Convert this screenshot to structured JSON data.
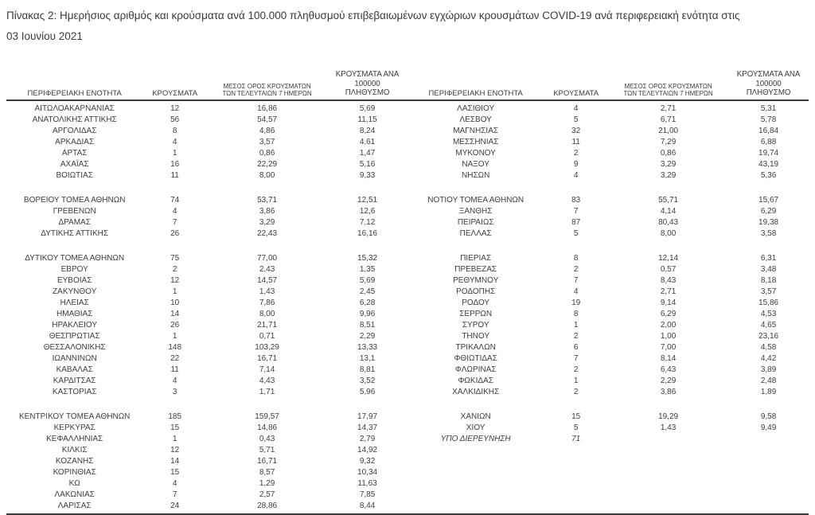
{
  "title": "Πίνακας 2:  Ημερήσιος αριθμός και κρούσματα ανά 100.000 πληθυσμού επιβεβαιωμένων εγχώριων κρουσμάτων COVID-19 ανά περιφερειακή ενότητα στις 03 Ιουνίου 2021",
  "table": {
    "headers": {
      "region": "ΠΕΡΙΦΕΡΕΙΑΚΗ ΕΝΟΤΗΤΑ",
      "cases": "ΚΡΟΥΣΜΑΤΑ",
      "avg7_line1": "ΜΕΣΟΣ ΟΡΟΣ ΚΡΟΥΣΜΑΤΩΝ",
      "avg7_line2": "ΤΩΝ ΤΕΛΕΥΤΑΙΩΝ 7 ΗΜΕΡΩΝ",
      "per100k_line1": "ΚΡΟΥΣΜΑΤΑ ΑΝΑ 100000",
      "per100k_line2": "ΠΛΗΘΥΣΜΟ"
    },
    "left_groups": [
      [
        {
          "r": "ΑΙΤΩΛΟΑΚΑΡΝΑΝΙΑΣ",
          "c": "12",
          "a": "16,86",
          "p": "5,69"
        },
        {
          "r": "ΑΝΑΤΟΛΙΚΗΣ ΑΤΤΙΚΗΣ",
          "c": "56",
          "a": "54,57",
          "p": "11,15"
        },
        {
          "r": "ΑΡΓΟΛΙΔΑΣ",
          "c": "8",
          "a": "4,86",
          "p": "8,24"
        },
        {
          "r": "ΑΡΚΑΔΙΑΣ",
          "c": "4",
          "a": "3,57",
          "p": "4,61"
        },
        {
          "r": "ΑΡΤΑΣ",
          "c": "1",
          "a": "0,86",
          "p": "1,47"
        },
        {
          "r": "ΑΧΑΪΑΣ",
          "c": "16",
          "a": "22,29",
          "p": "5,16"
        },
        {
          "r": "ΒΟΙΩΤΙΑΣ",
          "c": "11",
          "a": "8,00",
          "p": "9,33"
        }
      ],
      [
        {
          "r": "ΒΟΡΕΙΟΥ ΤΟΜΕΑ ΑΘΗΝΩΝ",
          "c": "74",
          "a": "53,71",
          "p": "12,51"
        },
        {
          "r": "ΓΡΕΒΕΝΩΝ",
          "c": "4",
          "a": "3,86",
          "p": "12,6"
        },
        {
          "r": "ΔΡΑΜΑΣ",
          "c": "7",
          "a": "3,29",
          "p": "7,12"
        },
        {
          "r": "ΔΥΤΙΚΗΣ ΑΤΤΙΚΗΣ",
          "c": "26",
          "a": "22,43",
          "p": "16,16"
        }
      ],
      [
        {
          "r": "ΔΥΤΙΚΟΥ ΤΟΜΕΑ ΑΘΗΝΩΝ",
          "c": "75",
          "a": "77,00",
          "p": "15,32"
        },
        {
          "r": "ΕΒΡΟΥ",
          "c": "2",
          "a": "2,43",
          "p": "1,35"
        },
        {
          "r": "ΕΥΒΟΙΑΣ",
          "c": "12",
          "a": "14,57",
          "p": "5,69"
        },
        {
          "r": "ΖΑΚΥΝΘΟΥ",
          "c": "1",
          "a": "1,43",
          "p": "2,45"
        },
        {
          "r": "ΗΛΕΙΑΣ",
          "c": "10",
          "a": "7,86",
          "p": "6,28"
        },
        {
          "r": "ΗΜΑΘΙΑΣ",
          "c": "14",
          "a": "8,00",
          "p": "9,96"
        },
        {
          "r": "ΗΡΑΚΛΕΙΟΥ",
          "c": "26",
          "a": "21,71",
          "p": "8,51"
        },
        {
          "r": "ΘΕΣΠΡΩΤΙΑΣ",
          "c": "1",
          "a": "0,71",
          "p": "2,29"
        },
        {
          "r": "ΘΕΣΣΑΛΟΝΙΚΗΣ",
          "c": "148",
          "a": "103,29",
          "p": "13,33"
        },
        {
          "r": "ΙΩΑΝΝΙΝΩΝ",
          "c": "22",
          "a": "16,71",
          "p": "13,1"
        },
        {
          "r": "ΚΑΒΑΛΑΣ",
          "c": "11",
          "a": "7,14",
          "p": "8,81"
        },
        {
          "r": "ΚΑΡΔΙΤΣΑΣ",
          "c": "4",
          "a": "4,43",
          "p": "3,52"
        },
        {
          "r": "ΚΑΣΤΟΡΙΑΣ",
          "c": "3",
          "a": "1,71",
          "p": "5,96"
        }
      ],
      [
        {
          "r": "ΚΕΝΤΡΙΚΟΥ ΤΟΜΕΑ ΑΘΗΝΩΝ",
          "c": "185",
          "a": "159,57",
          "p": "17,97"
        },
        {
          "r": "ΚΕΡΚΥΡΑΣ",
          "c": "15",
          "a": "14,86",
          "p": "14,37"
        },
        {
          "r": "ΚΕΦΑΛΛΗΝΙΑΣ",
          "c": "1",
          "a": "0,43",
          "p": "2,79"
        },
        {
          "r": "ΚΙΛΚΙΣ",
          "c": "12",
          "a": "5,71",
          "p": "14,92"
        },
        {
          "r": "ΚΟΖΑΝΗΣ",
          "c": "14",
          "a": "16,71",
          "p": "9,32"
        },
        {
          "r": "ΚΟΡΙΝΘΙΑΣ",
          "c": "15",
          "a": "8,57",
          "p": "10,34"
        },
        {
          "r": "ΚΩ",
          "c": "4",
          "a": "1,29",
          "p": "11,63"
        },
        {
          "r": "ΛΑΚΩΝΙΑΣ",
          "c": "7",
          "a": "2,57",
          "p": "7,85"
        },
        {
          "r": "ΛΑΡΙΣΑΣ",
          "c": "24",
          "a": "28,86",
          "p": "8,44"
        }
      ]
    ],
    "right_groups": [
      [
        {
          "r": "ΛΑΣΙΘΙΟΥ",
          "c": "4",
          "a": "2,71",
          "p": "5,31"
        },
        {
          "r": "ΛΕΣΒΟΥ",
          "c": "5",
          "a": "6,71",
          "p": "5,78"
        },
        {
          "r": "ΜΑΓΝΗΣΙΑΣ",
          "c": "32",
          "a": "21,00",
          "p": "16,84"
        },
        {
          "r": "ΜΕΣΣΗΝΙΑΣ",
          "c": "11",
          "a": "7,29",
          "p": "6,88"
        },
        {
          "r": "ΜΥΚΟΝΟΥ",
          "c": "2",
          "a": "0,86",
          "p": "19,74"
        },
        {
          "r": "ΝΑΞΟΥ",
          "c": "9",
          "a": "3,29",
          "p": "43,19"
        },
        {
          "r": "ΝΗΣΩΝ",
          "c": "4",
          "a": "3,29",
          "p": "5,36"
        }
      ],
      [
        {
          "r": "ΝΟΤΙΟΥ ΤΟΜΕΑ ΑΘΗΝΩΝ",
          "c": "83",
          "a": "55,71",
          "p": "15,67"
        },
        {
          "r": "ΞΑΝΘΗΣ",
          "c": "7",
          "a": "4,14",
          "p": "6,29"
        },
        {
          "r": "ΠΕΙΡΑΙΩΣ",
          "c": "87",
          "a": "80,43",
          "p": "19,38"
        },
        {
          "r": "ΠΕΛΛΑΣ",
          "c": "5",
          "a": "8,00",
          "p": "3,58"
        }
      ],
      [
        {
          "r": "ΠΙΕΡΙΑΣ",
          "c": "8",
          "a": "12,14",
          "p": "6,31"
        },
        {
          "r": "ΠΡΕΒΕΖΑΣ",
          "c": "2",
          "a": "0,57",
          "p": "3,48"
        },
        {
          "r": "ΡΕΘΥΜΝΟΥ",
          "c": "7",
          "a": "8,43",
          "p": "8,18"
        },
        {
          "r": "ΡΟΔΟΠΗΣ",
          "c": "4",
          "a": "2,71",
          "p": "3,57"
        },
        {
          "r": "ΡΟΔΟΥ",
          "c": "19",
          "a": "9,14",
          "p": "15,86"
        },
        {
          "r": "ΣΕΡΡΩΝ",
          "c": "8",
          "a": "6,29",
          "p": "4,53"
        },
        {
          "r": "ΣΥΡΟΥ",
          "c": "1",
          "a": "2,00",
          "p": "4,65"
        },
        {
          "r": "ΤΗΝΟΥ",
          "c": "2",
          "a": "1,00",
          "p": "23,16"
        },
        {
          "r": "ΤΡΙΚΑΛΩΝ",
          "c": "6",
          "a": "7,00",
          "p": "4,58"
        },
        {
          "r": "ΦΘΙΩΤΙΔΑΣ",
          "c": "7",
          "a": "8,14",
          "p": "4,42"
        },
        {
          "r": "ΦΛΩΡΙΝΑΣ",
          "c": "2",
          "a": "6,43",
          "p": "3,89"
        },
        {
          "r": "ΦΩΚΙΔΑΣ",
          "c": "1",
          "a": "2,29",
          "p": "2,48"
        },
        {
          "r": "ΧΑΛΚΙΔΙΚΗΣ",
          "c": "2",
          "a": "3,86",
          "p": "1,89"
        }
      ],
      [
        {
          "r": "ΧΑΝΙΩΝ",
          "c": "15",
          "a": "19,29",
          "p": "9,58"
        },
        {
          "r": "ΧΙΟΥ",
          "c": "5",
          "a": "1,43",
          "p": "9,49"
        },
        {
          "r": "ΥΠΟ ΔΙΕΡΕΥΝΗΣΗ",
          "c": "71",
          "a": "",
          "p": "",
          "italic": true
        }
      ]
    ]
  }
}
